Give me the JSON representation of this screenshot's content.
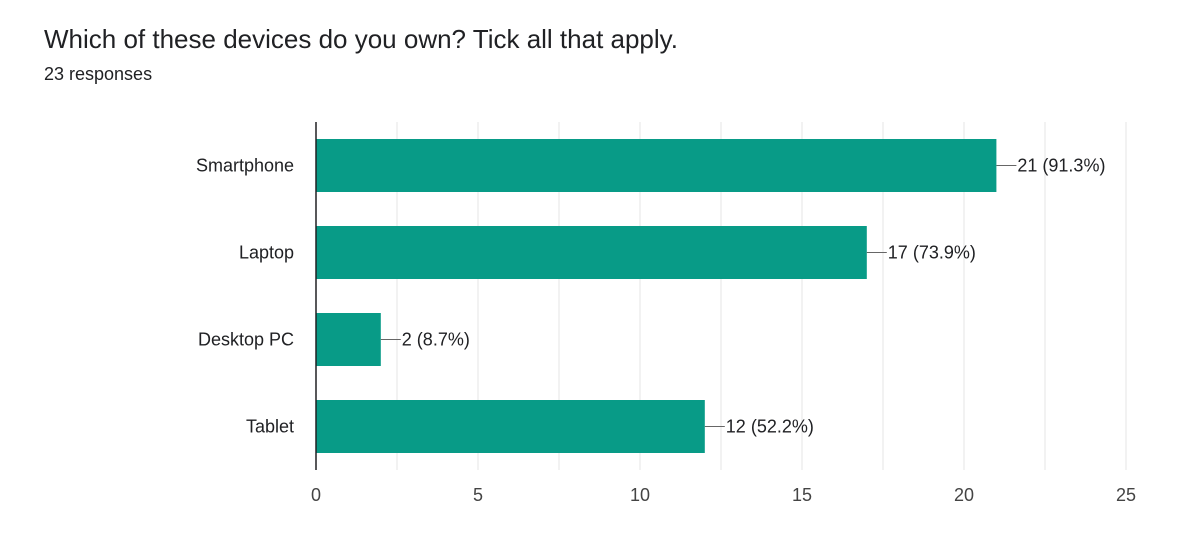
{
  "question": "Which of these devices do you own? Tick all that apply.",
  "responses": "23 responses",
  "colors": {
    "bar": "#089b87",
    "grid": "#e6e6e6",
    "axis": "#202124",
    "leader": "#666666"
  },
  "chart_data": {
    "type": "bar",
    "orientation": "horizontal",
    "title": "",
    "xlabel": "",
    "ylabel": "",
    "categories": [
      "Smartphone",
      "Laptop",
      "Desktop PC",
      "Tablet"
    ],
    "values": [
      21,
      17,
      2,
      12
    ],
    "data_labels": [
      "21 (91.3%)",
      "17 (73.9%)",
      "2 (8.7%)",
      "12 (52.2%)"
    ],
    "xlim": [
      0,
      25
    ],
    "xticks": [
      0,
      5,
      10,
      15,
      20,
      25
    ],
    "grid": true,
    "legend": "none"
  }
}
